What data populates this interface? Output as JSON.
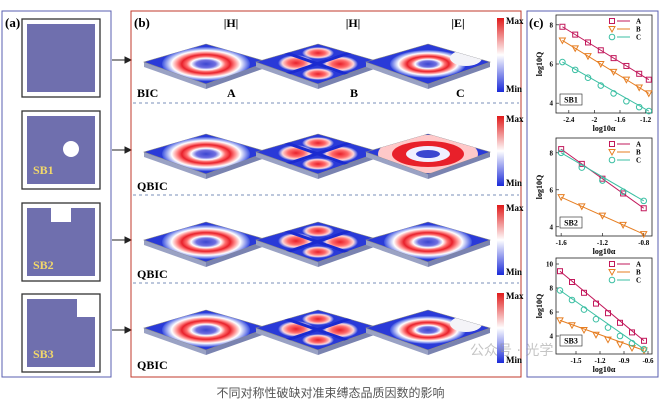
{
  "panel_a": {
    "label": "(a)",
    "structures": [
      "",
      "SB1",
      "SB2",
      "SB3"
    ]
  },
  "panel_b": {
    "label": "(b)",
    "col_headers": [
      "|H|",
      "|H|",
      "|E|"
    ],
    "mode_labels": [
      "A",
      "B",
      "C"
    ],
    "row_labels": [
      "BIC",
      "QBIC",
      "QBIC",
      "QBIC"
    ],
    "colorbar": {
      "max": "Max",
      "min": "Min"
    }
  },
  "panel_c": {
    "label": "(c)",
    "legend": [
      "A",
      "B",
      "C"
    ]
  },
  "colors": {
    "A": "#c2185b",
    "B": "#e67e22",
    "C": "#3bbfa3",
    "frame_a": "#5a5fb0",
    "frame_b": "#c0392b"
  },
  "watermark": "公众号 · 光学",
  "caption": "不同对称性破缺对准束缚态品质因数的影响",
  "chart_data": [
    {
      "type": "scatter",
      "title": "SB1",
      "xlabel": "log10α",
      "ylabel": "log10Q",
      "xlim": [
        -2.6,
        -1.1
      ],
      "ylim": [
        3.5,
        8.5
      ],
      "xticks": [
        -2.4,
        -2.0,
        -1.6,
        -1.2
      ],
      "xtick_labels": [
        "-2.4",
        "-2",
        "-1.6",
        "-1.2"
      ],
      "yticks": [
        4,
        6,
        8
      ],
      "series": [
        {
          "name": "A",
          "x": [
            -2.5,
            -2.3,
            -2.1,
            -1.9,
            -1.7,
            -1.5,
            -1.3,
            -1.15
          ],
          "y": [
            7.9,
            7.5,
            7.1,
            6.7,
            6.3,
            5.9,
            5.5,
            5.2
          ]
        },
        {
          "name": "B",
          "x": [
            -2.5,
            -2.3,
            -2.1,
            -1.9,
            -1.7,
            -1.5,
            -1.3,
            -1.15
          ],
          "y": [
            7.2,
            6.8,
            6.4,
            6.0,
            5.6,
            5.2,
            4.8,
            4.5
          ]
        },
        {
          "name": "C",
          "x": [
            -2.5,
            -2.3,
            -2.1,
            -1.9,
            -1.7,
            -1.5,
            -1.3,
            -1.15
          ],
          "y": [
            6.1,
            5.7,
            5.3,
            4.9,
            4.5,
            4.1,
            3.8,
            3.6
          ]
        }
      ]
    },
    {
      "type": "scatter",
      "title": "SB2",
      "xlabel": "log10α",
      "ylabel": "log10Q",
      "xlim": [
        -1.65,
        -0.72
      ],
      "ylim": [
        3.5,
        8.8
      ],
      "xticks": [
        -1.6,
        -1.2,
        -0.8
      ],
      "xtick_labels": [
        "-1.6",
        "-1.2",
        "-0.8"
      ],
      "yticks": [
        4,
        6,
        8
      ],
      "series": [
        {
          "name": "A",
          "x": [
            -1.6,
            -1.4,
            -1.2,
            -1.0,
            -0.8
          ],
          "y": [
            8.2,
            7.4,
            6.6,
            5.8,
            5.0
          ]
        },
        {
          "name": "B",
          "x": [
            -1.6,
            -1.4,
            -1.2,
            -1.0,
            -0.8
          ],
          "y": [
            5.6,
            5.1,
            4.6,
            4.1,
            3.6
          ]
        },
        {
          "name": "C",
          "x": [
            -1.6,
            -1.4,
            -1.2,
            -1.0,
            -0.8
          ],
          "y": [
            8.0,
            7.2,
            6.5,
            5.9,
            5.4
          ]
        }
      ]
    },
    {
      "type": "scatter",
      "title": "SB3",
      "xlabel": "log10α",
      "ylabel": "log10Q",
      "xlim": [
        -1.75,
        -0.55
      ],
      "ylim": [
        2.5,
        10.5
      ],
      "xticks": [
        -1.5,
        -1.2,
        -0.9,
        -0.6
      ],
      "xtick_labels": [
        "-1.5",
        "-1.2",
        "-0.9",
        "-0.6"
      ],
      "yticks": [
        4,
        6,
        8,
        10
      ],
      "series": [
        {
          "name": "A",
          "x": [
            -1.7,
            -1.55,
            -1.4,
            -1.25,
            -1.1,
            -0.95,
            -0.8,
            -0.65
          ],
          "y": [
            9.4,
            8.5,
            7.6,
            6.7,
            5.9,
            5.1,
            4.3,
            3.6
          ]
        },
        {
          "name": "B",
          "x": [
            -1.7,
            -1.55,
            -1.4,
            -1.25,
            -1.1,
            -0.95,
            -0.8,
            -0.65
          ],
          "y": [
            5.3,
            4.9,
            4.5,
            4.1,
            3.7,
            3.3,
            3.0,
            2.8
          ]
        },
        {
          "name": "C",
          "x": [
            -1.7,
            -1.55,
            -1.4,
            -1.25,
            -1.1,
            -0.95,
            -0.8,
            -0.65
          ],
          "y": [
            7.8,
            7.0,
            6.2,
            5.4,
            4.7,
            4.0,
            3.4,
            2.9
          ]
        }
      ]
    }
  ]
}
